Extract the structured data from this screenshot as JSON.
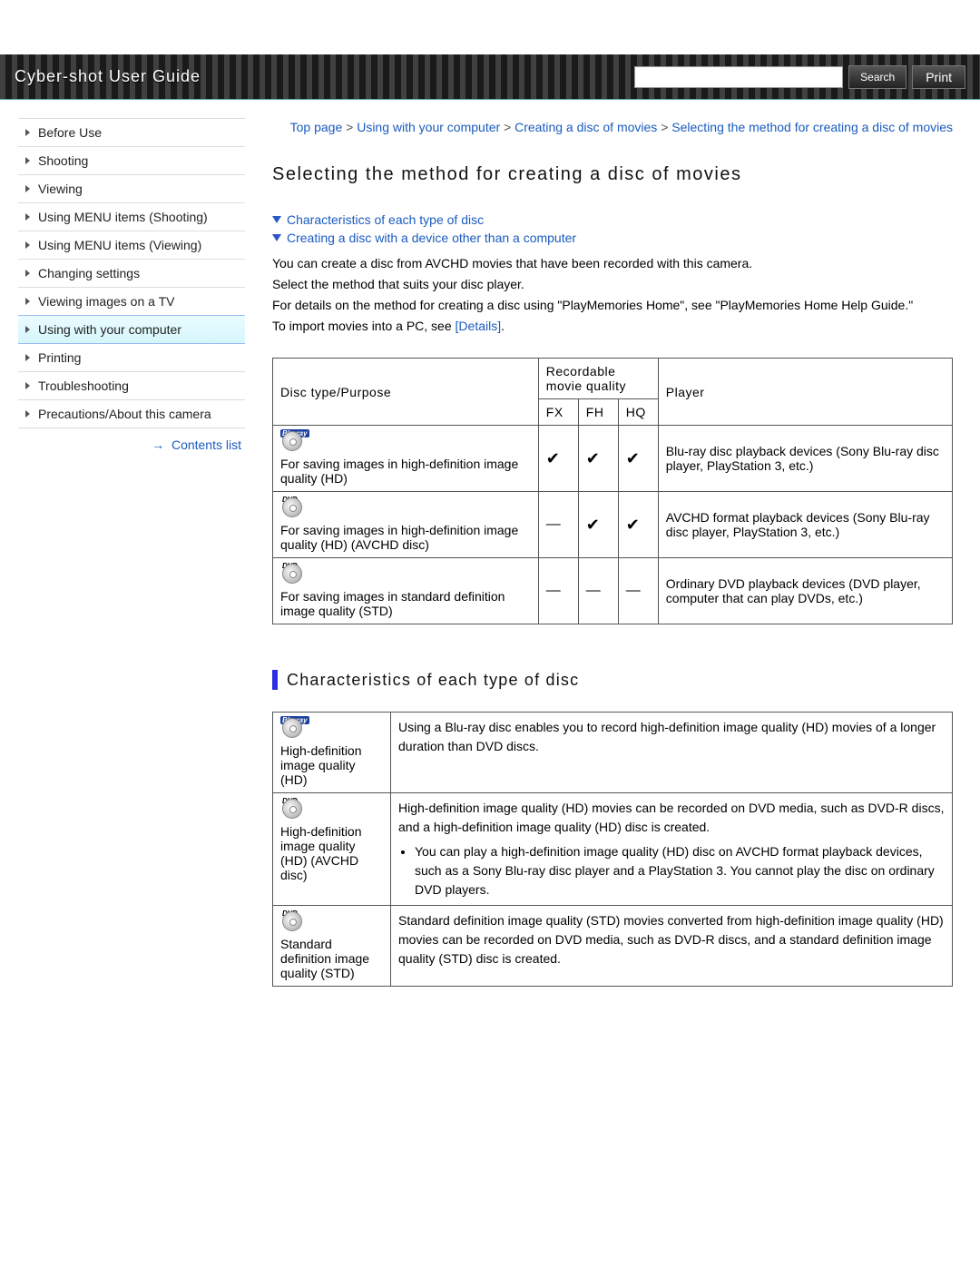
{
  "header": {
    "title": "Cyber-shot User Guide",
    "search_placeholder": "",
    "search_button": "Search",
    "print_button": "Print"
  },
  "sidebar": {
    "items": [
      {
        "label": "Before Use"
      },
      {
        "label": "Shooting"
      },
      {
        "label": "Viewing"
      },
      {
        "label": "Using MENU items (Shooting)"
      },
      {
        "label": "Using MENU items (Viewing)"
      },
      {
        "label": "Changing settings"
      },
      {
        "label": "Viewing images on a TV"
      },
      {
        "label": "Using with your computer"
      },
      {
        "label": "Printing"
      },
      {
        "label": "Troubleshooting"
      },
      {
        "label": "Precautions/About this camera"
      }
    ],
    "active_index": 7,
    "contents_list_label": "Contents list"
  },
  "breadcrumb": {
    "parts": [
      "Top page",
      "Using with your computer",
      "Creating a disc of movies",
      "Selecting the method for creating a disc of movies"
    ],
    "separator": " > "
  },
  "main": {
    "title": "Selecting the method for creating a disc of movies",
    "anchors": [
      "Characteristics of each type of disc",
      "Creating a disc with a device other than a computer"
    ],
    "intro": [
      "You can create a disc from AVCHD movies that have been recorded with this camera.",
      "Select the method that suits your disc player.",
      "For details on the method for creating a disc using \"PlayMemories Home\", see \"PlayMemories Home Help Guide.\""
    ],
    "import_prefix": "To import movies into a PC, see ",
    "import_link": "[Details]",
    "import_suffix": "."
  },
  "disc_table": {
    "headers": {
      "disc_type": "Disc type/Purpose",
      "quality_group": "Recordable movie quality",
      "quality_cols": [
        "FX",
        "FH",
        "HQ"
      ],
      "player": "Player"
    },
    "rows": [
      {
        "icon_label": "Blu-ray",
        "icon_class": "bluray",
        "desc": "For saving images in high-definition image quality (HD)",
        "fx": "check",
        "fh": "check",
        "hq": "check",
        "player": "Blu-ray disc playback devices (Sony Blu-ray disc player, PlayStation 3, etc.)"
      },
      {
        "icon_label": "DVD",
        "icon_class": "dvd",
        "desc": "For saving images in high-definition image quality (HD) (AVCHD disc)",
        "fx": "dash",
        "fh": "check",
        "hq": "check",
        "player": "AVCHD format playback devices (Sony Blu-ray disc player, PlayStation 3, etc.)"
      },
      {
        "icon_label": "DVD",
        "icon_class": "dvd",
        "desc": "For saving images in standard definition image quality (STD)",
        "fx": "dash",
        "fh": "dash",
        "hq": "dash",
        "player": "Ordinary DVD playback devices (DVD player, computer that can play DVDs, etc.)"
      }
    ]
  },
  "characteristics": {
    "heading": "Characteristics of each type of disc",
    "rows": [
      {
        "icon_label": "Blu-ray",
        "icon_class": "bluray",
        "type": "High-definition image quality (HD)",
        "desc": "Using a Blu-ray disc enables you to record high-definition image quality (HD) movies of a longer duration than DVD discs.",
        "bullet": null
      },
      {
        "icon_label": "DVD",
        "icon_class": "dvd",
        "type": "High-definition image quality (HD) (AVCHD disc)",
        "desc": "High-definition image quality (HD) movies can be recorded on DVD media, such as DVD-R discs, and a high-definition image quality (HD) disc is created.",
        "bullet": "You can play a high-definition image quality (HD) disc on AVCHD format playback devices, such as a Sony Blu-ray disc player and a PlayStation 3. You cannot play the disc on ordinary DVD players."
      },
      {
        "icon_label": "DVD",
        "icon_class": "dvd",
        "type": "Standard definition image quality (STD)",
        "desc": "Standard definition image quality (STD) movies converted from high-definition image quality (HD) movies can be recorded on DVD media, such as DVD-R discs, and a standard definition image quality (STD) disc is created.",
        "bullet": null
      }
    ]
  },
  "colors": {
    "link": "#1a5bbf",
    "accent_blue": "#2a2fe0",
    "triangle": "#2a58c8",
    "active_bg_top": "#eafcff",
    "active_bg_bottom": "#d5f6fc"
  }
}
